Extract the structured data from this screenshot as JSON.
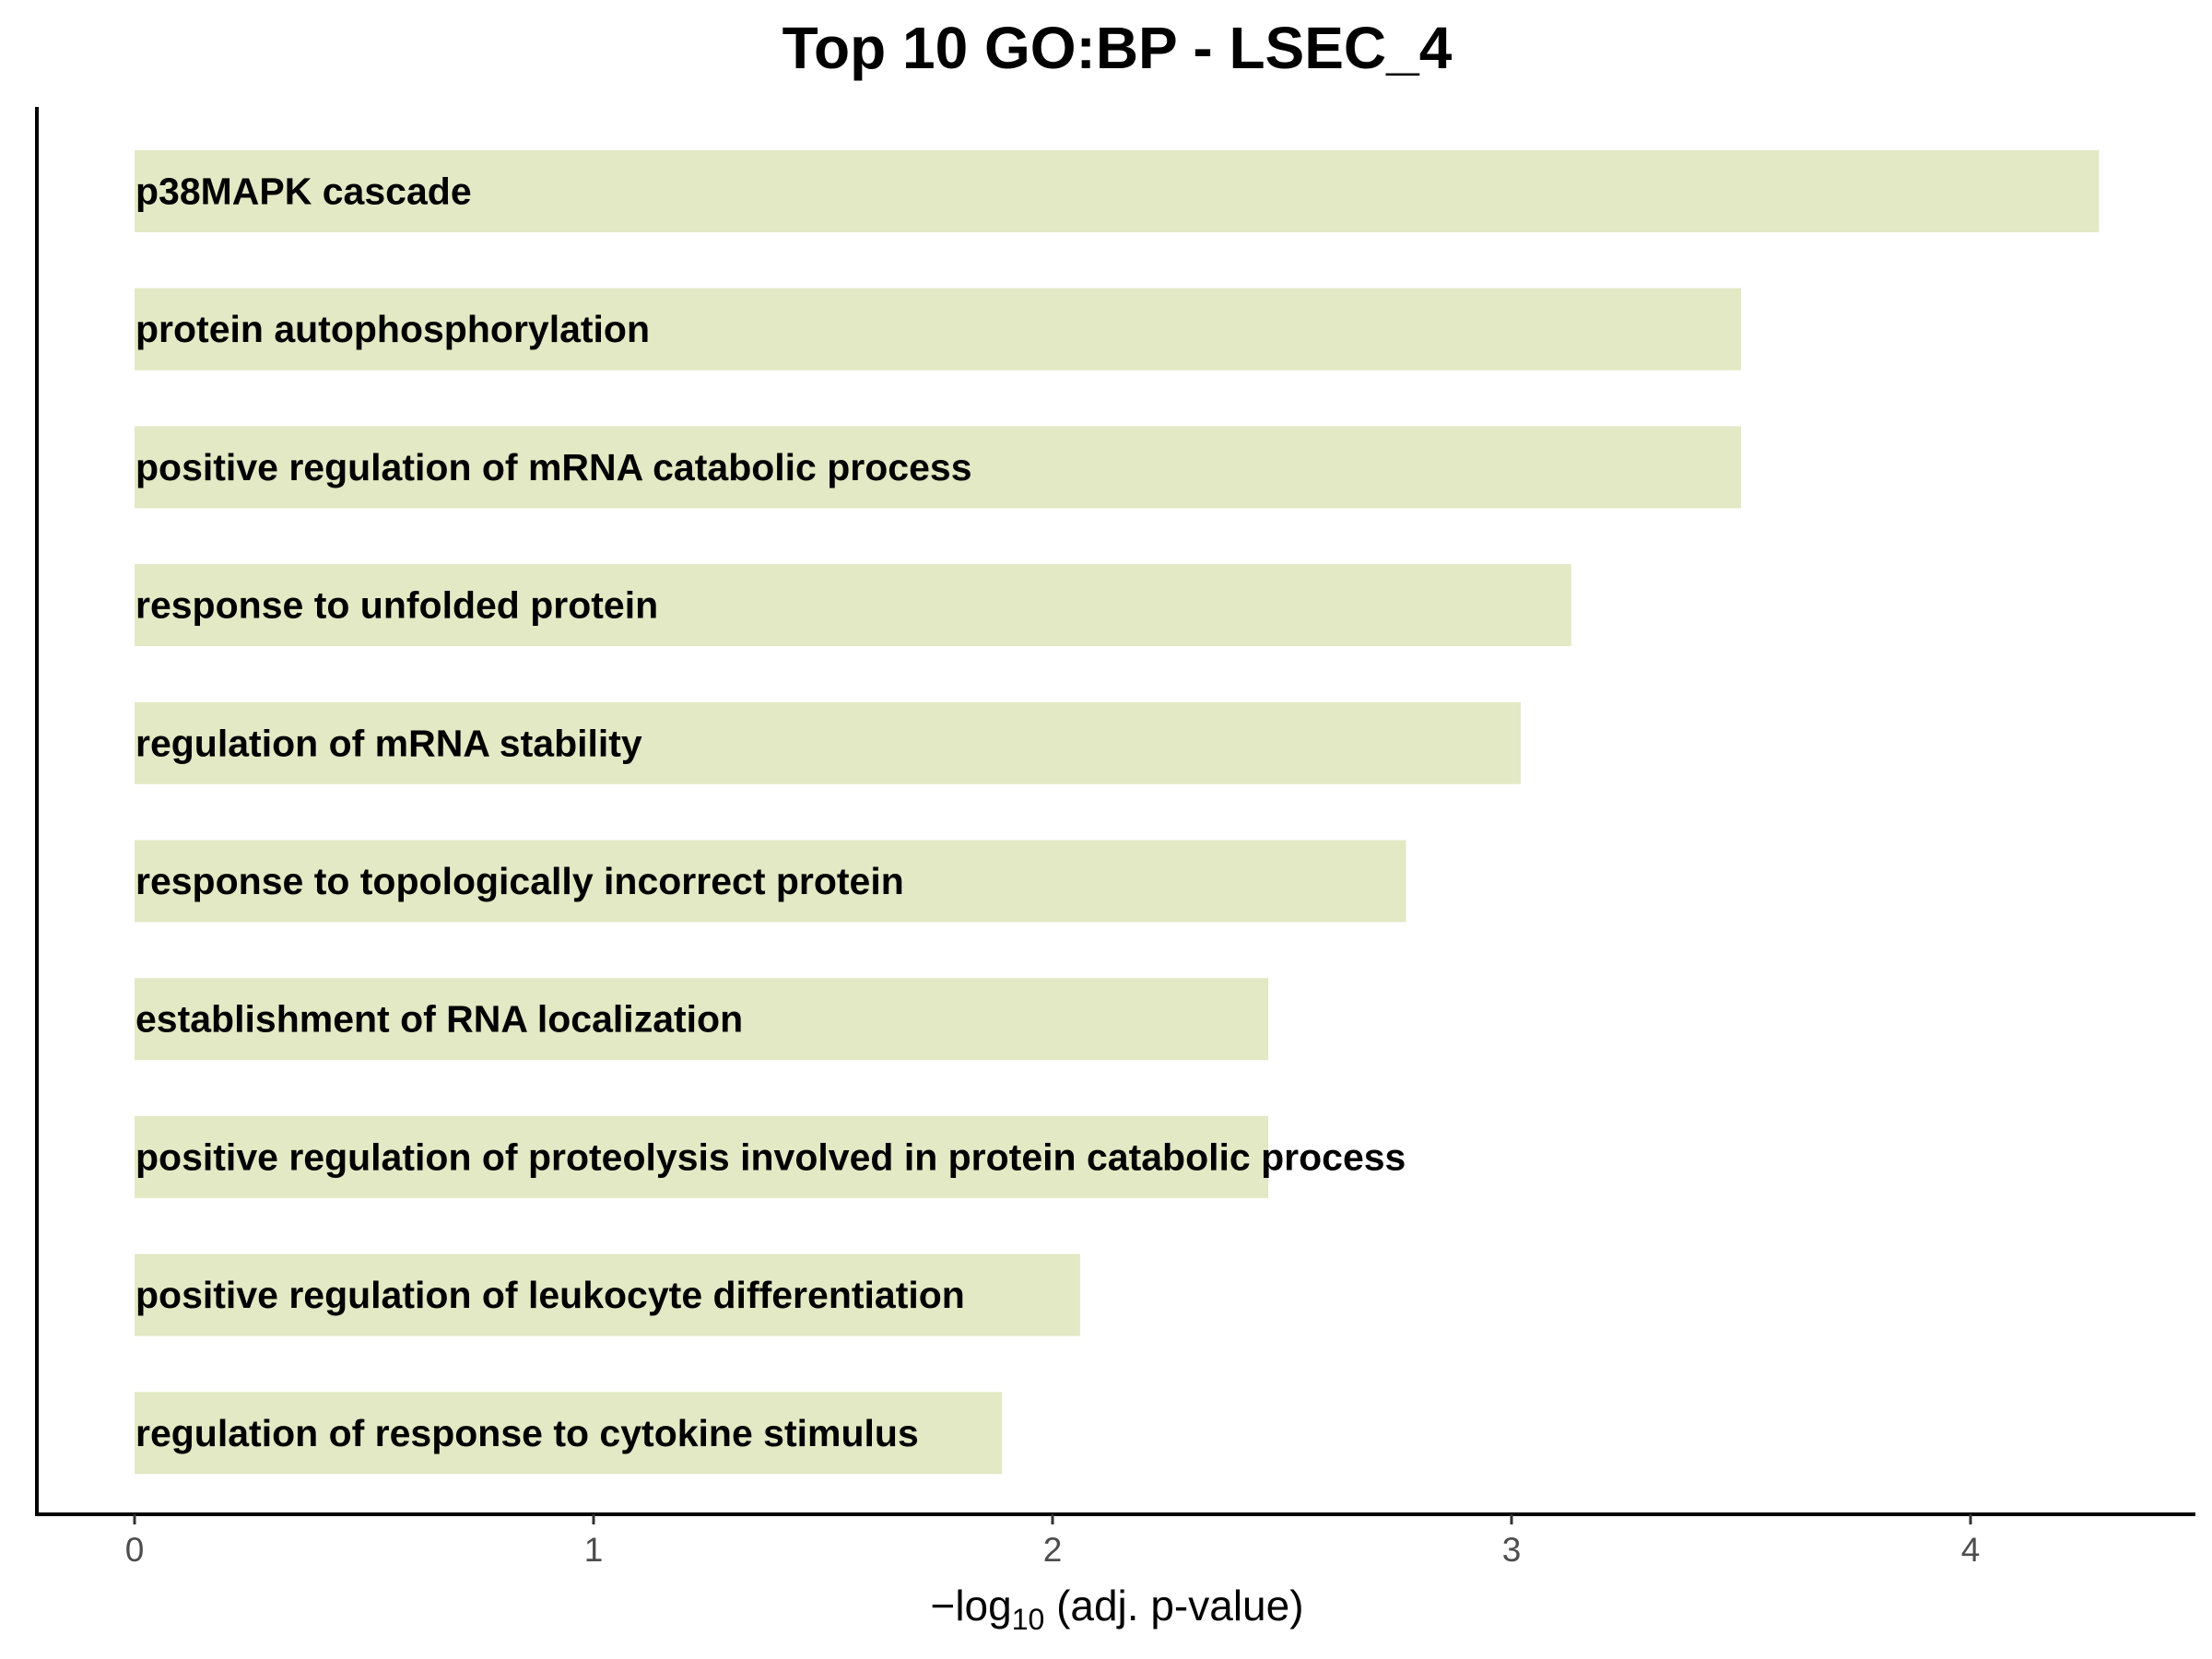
{
  "chart_data": {
    "type": "bar",
    "orientation": "horizontal",
    "title": "Top 10 GO:BP - LSEC_4",
    "xlabel": {
      "prefix": "−log",
      "subscript": "10",
      "suffix": " (adj. p-value)"
    },
    "ylabel": "",
    "xlim": [
      0,
      4.5
    ],
    "xticks": [
      0,
      1,
      2,
      3,
      4
    ],
    "grid": false,
    "legend": "none",
    "bar_color": "#e2e9c4",
    "categories": [
      "p38MAPK cascade",
      "protein autophosphorylation",
      "positive regulation of mRNA catabolic process",
      "response to unfolded protein",
      "regulation of mRNA stability",
      "response to topologically incorrect protein",
      "establishment of RNA localization",
      "positive regulation of proteolysis involved in protein catabolic process",
      "positive regulation of leukocyte differentiation",
      "regulation of response to cytokine stimulus"
    ],
    "values": [
      4.28,
      3.5,
      3.5,
      3.13,
      3.02,
      2.77,
      2.47,
      2.47,
      2.06,
      1.89
    ]
  }
}
